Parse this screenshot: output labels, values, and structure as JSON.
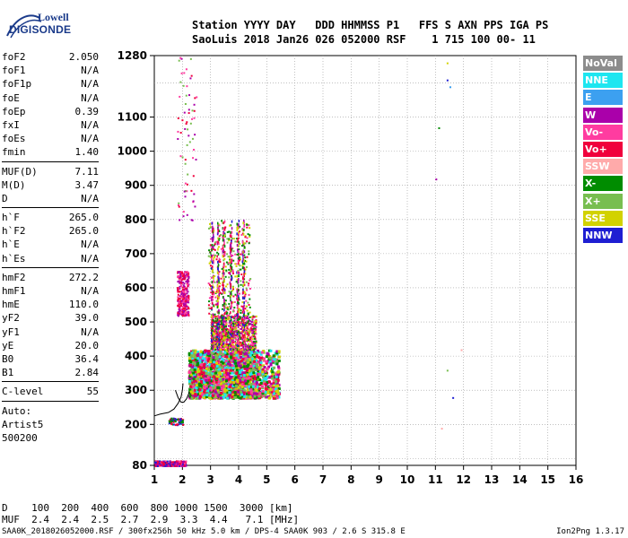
{
  "logo": {
    "line1": "Lowell",
    "line2": "DIGISONDE"
  },
  "header": {
    "line1": "Station YYYY DAY   DDD HHMMSS P1   FFS S AXN PPS IGA PS",
    "line2": "SaoLuis 2018 Jan26 026 052000 RSF    1 715 100 00- 11"
  },
  "params": {
    "group1": [
      {
        "name": "foF2",
        "value": "2.050"
      },
      {
        "name": "foF1",
        "value": "N/A"
      },
      {
        "name": "foF1p",
        "value": "N/A"
      },
      {
        "name": "foE",
        "value": "N/A"
      },
      {
        "name": "foEp",
        "value": "0.39"
      },
      {
        "name": "fxI",
        "value": "N/A"
      },
      {
        "name": "foEs",
        "value": "N/A"
      },
      {
        "name": "fmin",
        "value": "1.40"
      }
    ],
    "group2": [
      {
        "name": "MUF(D)",
        "value": "7.11"
      },
      {
        "name": "M(D)",
        "value": "3.47"
      },
      {
        "name": "D",
        "value": "N/A"
      }
    ],
    "group3": [
      {
        "name": "h`F",
        "value": "265.0"
      },
      {
        "name": "h`F2",
        "value": "265.0"
      },
      {
        "name": "h`E",
        "value": "N/A"
      },
      {
        "name": "h`Es",
        "value": "N/A"
      }
    ],
    "group4": [
      {
        "name": "hmF2",
        "value": "272.2"
      },
      {
        "name": "hmF1",
        "value": "N/A"
      },
      {
        "name": "hmE",
        "value": "110.0"
      },
      {
        "name": "yF2",
        "value": "39.0"
      },
      {
        "name": "yF1",
        "value": "N/A"
      },
      {
        "name": "yE",
        "value": "20.0"
      },
      {
        "name": "B0",
        "value": "36.4"
      },
      {
        "name": "B1",
        "value": "2.84"
      }
    ],
    "clevel": {
      "name": "C-level",
      "value": "55"
    },
    "auto": [
      "Auto:",
      "Artist5",
      "500200"
    ]
  },
  "legend": [
    {
      "label": "NoVal",
      "color": "#8c8c8c"
    },
    {
      "label": "NNE",
      "color": "#1ee6f0"
    },
    {
      "label": "E",
      "color": "#3ca0f0"
    },
    {
      "label": "W",
      "color": "#aa00aa"
    },
    {
      "label": "Vo-",
      "color": "#ff3ca0"
    },
    {
      "label": "Vo+",
      "color": "#f0003c"
    },
    {
      "label": "SSW",
      "color": "#ffaaaa"
    },
    {
      "label": "X-",
      "color": "#008c00"
    },
    {
      "label": "X+",
      "color": "#78be50"
    },
    {
      "label": "SSE",
      "color": "#d2d200"
    },
    {
      "label": "NNW",
      "color": "#1e1ed2"
    }
  ],
  "chart_data": {
    "type": "scatter",
    "title": "",
    "xlabel": "",
    "ylabel": "",
    "xlim": [
      1,
      16
    ],
    "ylim": [
      80,
      1280
    ],
    "x_ticks": [
      1,
      2,
      3,
      4,
      5,
      6,
      7,
      8,
      9,
      10,
      11,
      12,
      13,
      14,
      15,
      16
    ],
    "y_ticks": [
      80,
      200,
      300,
      400,
      500,
      600,
      700,
      800,
      900,
      1000,
      1100,
      1280
    ],
    "grid": true,
    "legend_position": "right",
    "series": [
      {
        "kind": "trace",
        "values": [
          [
            1.0,
            225
          ],
          [
            1.2,
            230
          ],
          [
            1.5,
            235
          ],
          [
            1.7,
            245
          ],
          [
            1.85,
            262
          ],
          [
            1.95,
            280
          ],
          [
            2.0,
            300
          ],
          [
            2.02,
            320
          ]
        ]
      },
      {
        "kind": "trace",
        "values": [
          [
            1.75,
            300
          ],
          [
            1.85,
            278
          ],
          [
            1.95,
            265
          ],
          [
            2.05,
            265
          ],
          [
            2.15,
            275
          ],
          [
            2.25,
            295
          ]
        ]
      }
    ],
    "echo_clusters": [
      {
        "x": [
          2.2,
          5.4
        ],
        "h": [
          280,
          420
        ],
        "density": "high",
        "colors": [
          "Vo+",
          "Vo-",
          "X-",
          "SSE",
          "NNE",
          "W",
          "X+"
        ]
      },
      {
        "x": [
          3.0,
          4.6
        ],
        "h": [
          420,
          520
        ],
        "density": "medium",
        "colors": [
          "Vo+",
          "Vo-",
          "W",
          "X-",
          "SSE"
        ]
      },
      {
        "x": [
          2.9,
          4.4
        ],
        "h": [
          520,
          800
        ],
        "density": "low",
        "colors": [
          "X-",
          "SSE",
          "Vo-",
          "Vo+",
          "X+"
        ]
      },
      {
        "x": [
          1.8,
          2.2
        ],
        "h": [
          520,
          650
        ],
        "density": "low",
        "colors": [
          "Vo+",
          "Vo-",
          "W"
        ]
      },
      {
        "x": [
          1.8,
          2.5
        ],
        "h": [
          800,
          1280
        ],
        "density": "sparse",
        "colors": [
          "Vo+",
          "Vo-",
          "X+",
          "W"
        ]
      },
      {
        "x": [
          1.0,
          2.1
        ],
        "h": [
          80,
          95
        ],
        "density": "low",
        "colors": [
          "Vo+",
          "W",
          "NNW",
          "Vo-"
        ]
      },
      {
        "x": [
          1.5,
          2.0
        ],
        "h": [
          200,
          220
        ],
        "density": "sparse",
        "colors": [
          "NNW",
          "X-",
          "Vo+"
        ]
      }
    ],
    "isolated_points": [
      {
        "x": 11.1,
        "h": 1070,
        "color": "X-"
      },
      {
        "x": 11.0,
        "h": 920,
        "color": "W"
      },
      {
        "x": 11.4,
        "h": 1210,
        "color": "NNW"
      },
      {
        "x": 11.5,
        "h": 1190,
        "color": "E"
      },
      {
        "x": 11.6,
        "h": 280,
        "color": "NNW"
      },
      {
        "x": 11.4,
        "h": 360,
        "color": "X+"
      },
      {
        "x": 11.2,
        "h": 190,
        "color": "SSW"
      },
      {
        "x": 11.9,
        "h": 420,
        "color": "SSW"
      },
      {
        "x": 11.4,
        "h": 1260,
        "color": "SSE"
      }
    ]
  },
  "muf_table": {
    "d_label": "D",
    "d_values": [
      "100",
      "200",
      "400",
      "600",
      "800",
      "1000",
      "1500",
      "3000"
    ],
    "d_unit": "[km]",
    "muf_label": "MUF",
    "muf_values": [
      "2.4",
      "2.4",
      "2.5",
      "2.7",
      "2.9",
      "3.3",
      "4.4",
      "7.1"
    ],
    "muf_unit": "[MHz]"
  },
  "footer": {
    "left": "SAA0K_2018026052000.RSF / 300fx256h 50 kHz 5.0 km / DPS-4 SAA0K 903 / 2.6 S 315.8 E",
    "right": "Ion2Png 1.3.17"
  }
}
